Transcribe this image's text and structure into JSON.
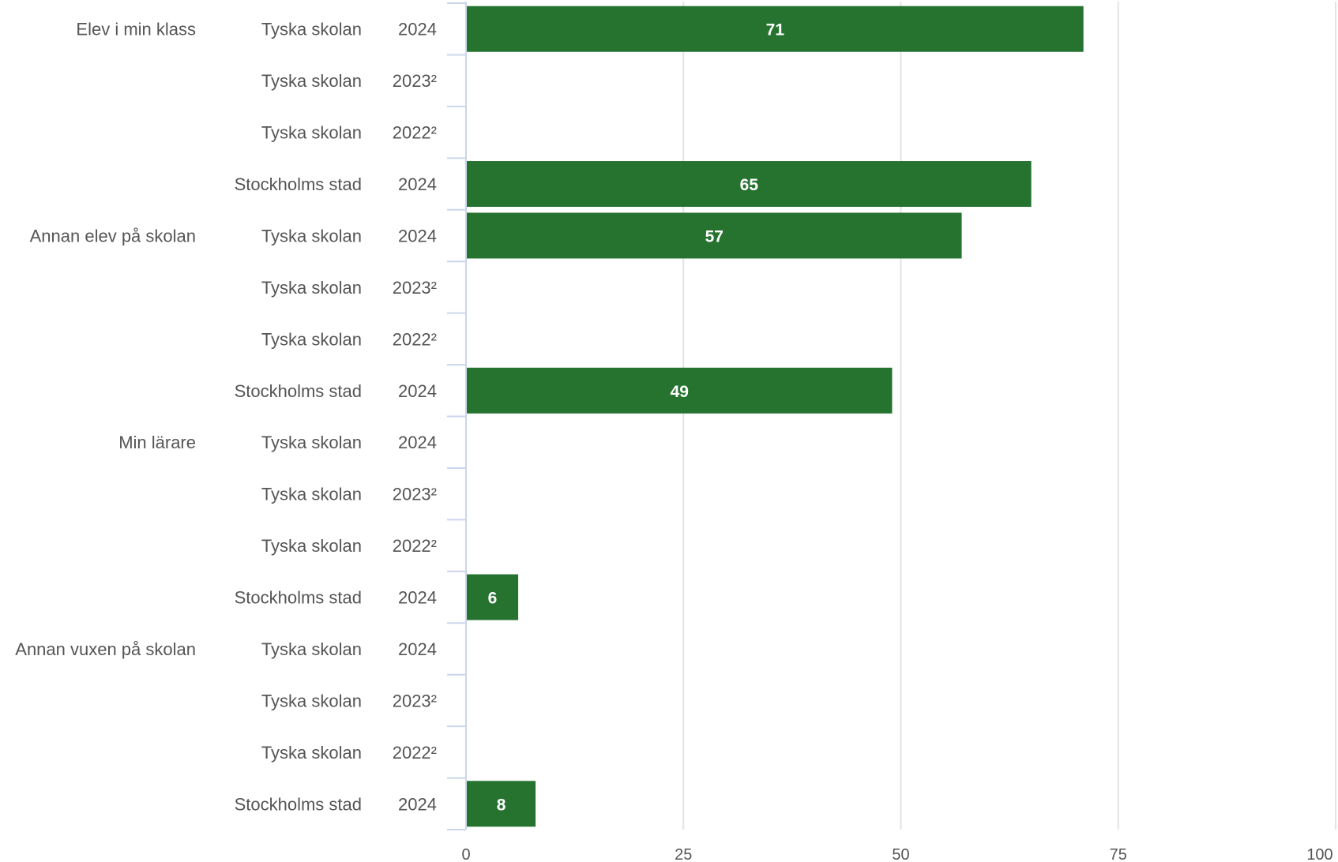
{
  "chart_data": {
    "type": "bar",
    "orientation": "horizontal",
    "xlim": [
      0,
      100
    ],
    "x_ticks": [
      "0",
      "25",
      "50",
      "75",
      "100"
    ],
    "grid": true,
    "bar_color": "#267330",
    "groups": [
      {
        "category": "Elev i min klass",
        "rows": [
          {
            "school": "Tyska skolan",
            "year": "2024",
            "value": 71
          },
          {
            "school": "Tyska skolan",
            "year": "2023²",
            "value": null
          },
          {
            "school": "Tyska skolan",
            "year": "2022²",
            "value": null
          },
          {
            "school": "Stockholms stad",
            "year": "2024",
            "value": 65
          }
        ]
      },
      {
        "category": "Annan elev på skolan",
        "rows": [
          {
            "school": "Tyska skolan",
            "year": "2024",
            "value": 57
          },
          {
            "school": "Tyska skolan",
            "year": "2023²",
            "value": null
          },
          {
            "school": "Tyska skolan",
            "year": "2022²",
            "value": null
          },
          {
            "school": "Stockholms stad",
            "year": "2024",
            "value": 49
          }
        ]
      },
      {
        "category": "Min lärare",
        "rows": [
          {
            "school": "Tyska skolan",
            "year": "2024",
            "value": null
          },
          {
            "school": "Tyska skolan",
            "year": "2023²",
            "value": null
          },
          {
            "school": "Tyska skolan",
            "year": "2022²",
            "value": null
          },
          {
            "school": "Stockholms stad",
            "year": "2024",
            "value": 6
          }
        ]
      },
      {
        "category": "Annan vuxen på skolan",
        "rows": [
          {
            "school": "Tyska skolan",
            "year": "2024",
            "value": null
          },
          {
            "school": "Tyska skolan",
            "year": "2023²",
            "value": null
          },
          {
            "school": "Tyska skolan",
            "year": "2022²",
            "value": null
          },
          {
            "school": "Stockholms stad",
            "year": "2024",
            "value": 8
          }
        ]
      }
    ]
  }
}
